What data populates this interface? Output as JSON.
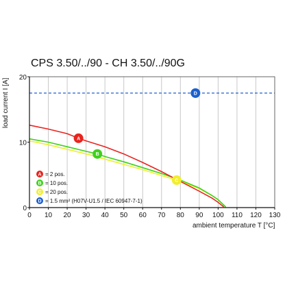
{
  "chart_data": {
    "type": "line",
    "title": "CPS 3.50/../90 - CH 3.50/../90G",
    "xlabel": "ambient temperature T [°C]",
    "ylabel": "load current I [A]",
    "xlim": [
      0,
      130
    ],
    "ylim": [
      0,
      20
    ],
    "x_ticks": [
      "0",
      "10",
      "20",
      "30",
      "40",
      "50",
      "60",
      "70",
      "80",
      "90",
      "100",
      "110",
      "120",
      "130"
    ],
    "y_ticks": [
      "0",
      "10",
      "20"
    ],
    "grid": "vertical",
    "legend_position": "bottom-left",
    "series": [
      {
        "marker": "A",
        "name": "= 2 pos.",
        "color": "#e8231e",
        "style": "solid",
        "x": [
          0,
          10,
          20,
          26,
          30,
          40,
          50,
          60,
          70,
          80,
          90,
          97,
          100,
          103
        ],
        "y": [
          12.6,
          12.0,
          11.3,
          10.6,
          10.2,
          9.3,
          8.2,
          6.9,
          5.5,
          4.0,
          2.5,
          1.4,
          0.8,
          0.1
        ]
      },
      {
        "marker": "B",
        "name": "= 10 pos.",
        "color": "#3ed11a",
        "style": "solid",
        "x": [
          0,
          10,
          20,
          30,
          36,
          40,
          50,
          60,
          70,
          80,
          90,
          97,
          100,
          104
        ],
        "y": [
          10.5,
          10.0,
          9.3,
          8.6,
          8.2,
          7.8,
          7.0,
          6.1,
          5.2,
          4.2,
          3.0,
          1.8,
          1.2,
          0.1
        ]
      },
      {
        "marker": "C",
        "name": "= 20 pos.",
        "color": "#f2ee2c",
        "style": "solid",
        "x": [
          0,
          10,
          20,
          30,
          40,
          50,
          60,
          70,
          78,
          80,
          90,
          97,
          100,
          104
        ],
        "y": [
          10.2,
          9.6,
          8.9,
          8.2,
          7.4,
          6.6,
          5.8,
          4.9,
          4.2,
          4.0,
          2.9,
          1.8,
          1.2,
          0.1
        ]
      },
      {
        "marker": "D",
        "name": "= 1.5 mm² (H07V-U1.5 / IEC 60947-7-1)",
        "color": "#1a5fcf",
        "style": "dashed",
        "x": [
          0,
          130
        ],
        "y": [
          17.5,
          17.5
        ]
      }
    ],
    "marker_positions": [
      {
        "marker": "A",
        "x": 26,
        "y": 10.6
      },
      {
        "marker": "B",
        "x": 36,
        "y": 8.2
      },
      {
        "marker": "C",
        "x": 78,
        "y": 4.2
      },
      {
        "marker": "D",
        "x": 88,
        "y": 17.5
      }
    ]
  }
}
